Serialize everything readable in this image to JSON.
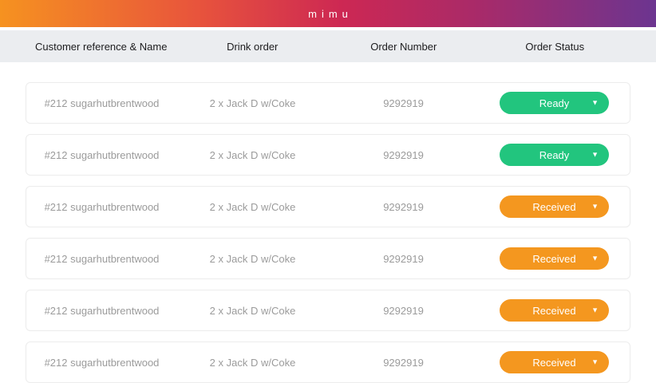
{
  "brand": {
    "logo": "mimu",
    "topbar_gradient": [
      "#f69220 0%",
      "#e8543c 30%",
      "#cd2853 52%",
      "#aa2a68 72%",
      "#6c3590 100%"
    ]
  },
  "table": {
    "columns": [
      "Customer reference & Name",
      "Drink order",
      "Order Number",
      "Order Status"
    ],
    "rows": [
      {
        "customer_reference": "#212 sugarhutbrentwood",
        "drink_order": "2 x Jack D w/Coke",
        "order_number": "9292919",
        "status": "Ready",
        "status_color": "#22c57e"
      },
      {
        "customer_reference": "#212 sugarhutbrentwood",
        "drink_order": "2 x Jack D w/Coke",
        "order_number": "9292919",
        "status": "Ready",
        "status_color": "#22c57e"
      },
      {
        "customer_reference": "#212 sugarhutbrentwood",
        "drink_order": "2 x Jack D w/Coke",
        "order_number": "9292919",
        "status": "Received",
        "status_color": "#f4971f"
      },
      {
        "customer_reference": "#212 sugarhutbrentwood",
        "drink_order": "2 x Jack D w/Coke",
        "order_number": "9292919",
        "status": "Received",
        "status_color": "#f4971f"
      },
      {
        "customer_reference": "#212 sugarhutbrentwood",
        "drink_order": "2 x Jack D w/Coke",
        "order_number": "9292919",
        "status": "Received",
        "status_color": "#f4971f"
      },
      {
        "customer_reference": "#212 sugarhutbrentwood",
        "drink_order": "2 x Jack D w/Coke",
        "order_number": "9292919",
        "status": "Received",
        "status_color": "#f4971f"
      }
    ]
  },
  "icons": {
    "dropdown_caret": "▼"
  },
  "colors": {
    "header_strip": "#ebedf0",
    "row_text": "#9b9b9b",
    "status_ready": "#22c57e",
    "status_received": "#f4971f"
  }
}
